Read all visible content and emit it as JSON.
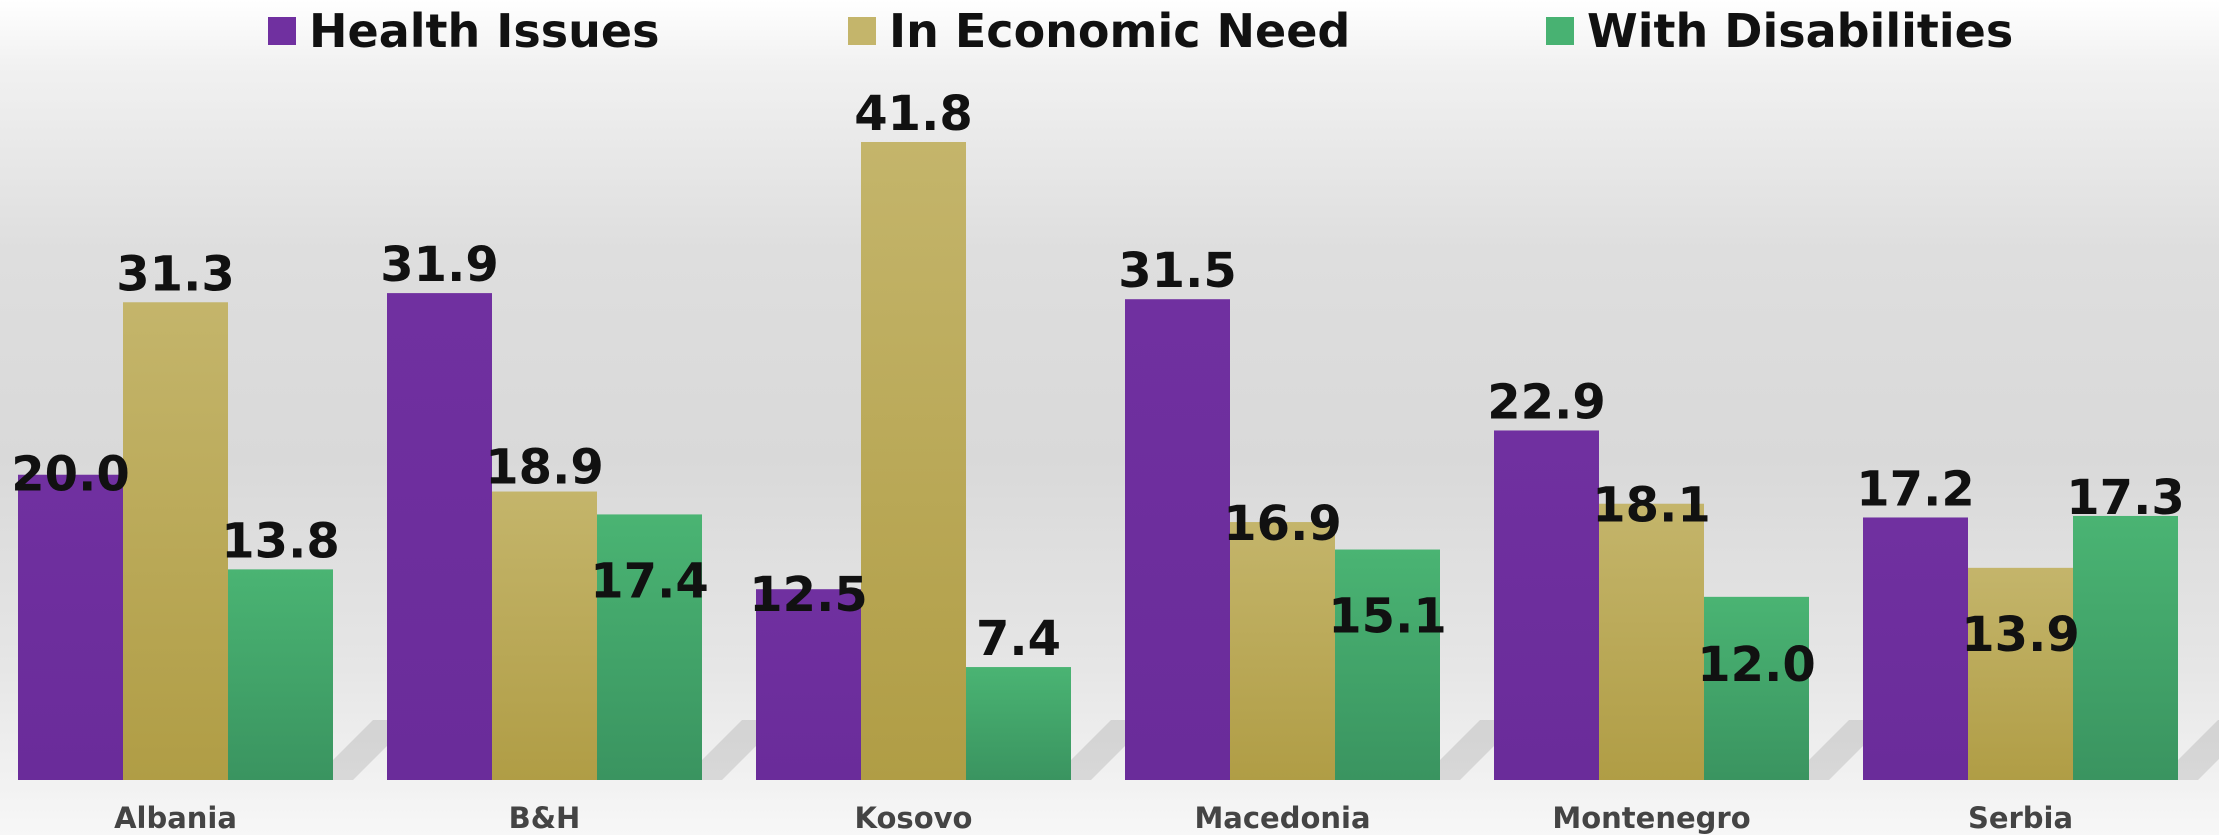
{
  "chart_data": {
    "type": "bar",
    "categories": [
      "Albania",
      "B&H",
      "Kosovo",
      "Macedonia",
      "Montenegro",
      "Serbia"
    ],
    "series": [
      {
        "name": "Health Issues",
        "color": "#7030a0",
        "values": [
          20.0,
          31.9,
          12.5,
          31.5,
          22.9,
          17.2
        ]
      },
      {
        "name": "In Economic Need",
        "color": "#c4b56b",
        "values": [
          31.3,
          18.9,
          41.8,
          16.9,
          18.1,
          13.9
        ]
      },
      {
        "name": "With Disabilities",
        "color": "#48b272",
        "values": [
          13.8,
          17.4,
          7.4,
          15.1,
          12.0,
          17.3
        ]
      }
    ],
    "value_labels": [
      [
        "20.0",
        "31.9",
        "12.5",
        "31.5",
        "22.9",
        "17.2"
      ],
      [
        "31.3",
        "18.9",
        "41.8",
        "16.9",
        "18.1",
        "13.9"
      ],
      [
        "13.8",
        "17.4",
        "7.4",
        "15.1",
        "12.0",
        "17.3"
      ]
    ],
    "title": "",
    "xlabel": "",
    "ylabel": "",
    "ylim": [
      0,
      50
    ],
    "grid": false,
    "legend": "top"
  }
}
